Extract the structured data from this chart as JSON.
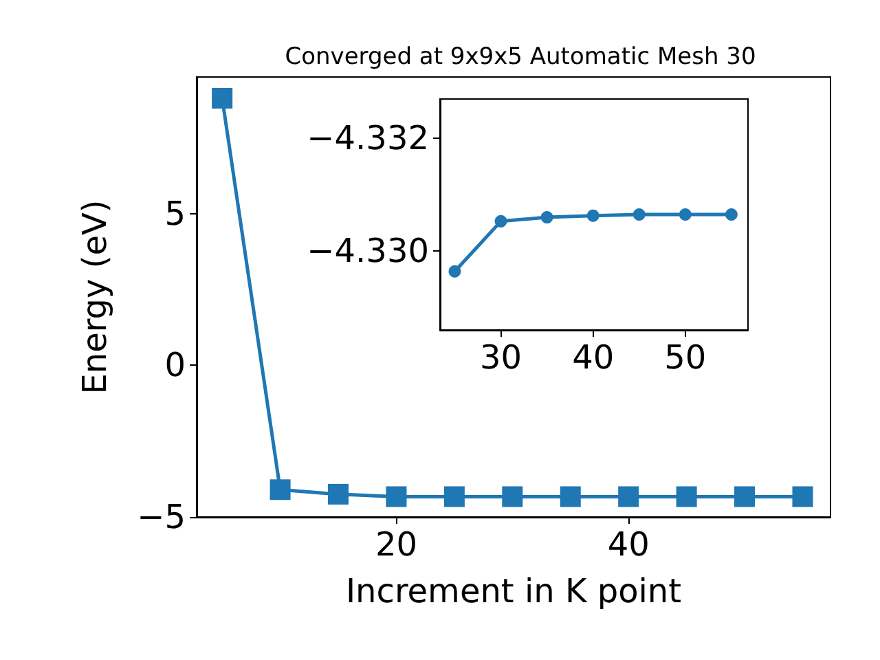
{
  "chart_data": [
    {
      "type": "line",
      "title": "Converged at 9x9x5 Automatic Mesh 30",
      "xlabel": "Increment in K point",
      "ylabel": "Energy (eV)",
      "x": [
        5,
        10,
        15,
        20,
        25,
        30,
        35,
        40,
        45,
        50,
        55
      ],
      "values": [
        8.8,
        -4.1,
        -4.25,
        -4.33,
        -4.33,
        -4.33,
        -4.33,
        -4.33,
        -4.33,
        -4.33,
        -4.33
      ],
      "color": "#1f77b4",
      "marker": "square",
      "xlim": [
        2.8,
        57.4
      ],
      "ylim": [
        -5,
        9.5
      ],
      "xticks": [
        20,
        40
      ],
      "yticks": [
        -5,
        0,
        5
      ]
    },
    {
      "type": "line",
      "x": [
        25,
        30,
        35,
        40,
        45,
        50,
        55
      ],
      "values": [
        -4.32964,
        -4.33053,
        -4.3306,
        -4.33063,
        -4.33065,
        -4.33065,
        -4.33065
      ],
      "color": "#1f77b4",
      "marker": "circle",
      "xlim": [
        23.4,
        56.8
      ],
      "ylim": [
        -4.3286,
        -4.3327
      ],
      "xticks": [
        30,
        40,
        50
      ],
      "yticks": [
        {
          "value": -4.332,
          "label": "−4.332"
        },
        {
          "value": -4.33,
          "label": "−4.330"
        }
      ]
    }
  ]
}
